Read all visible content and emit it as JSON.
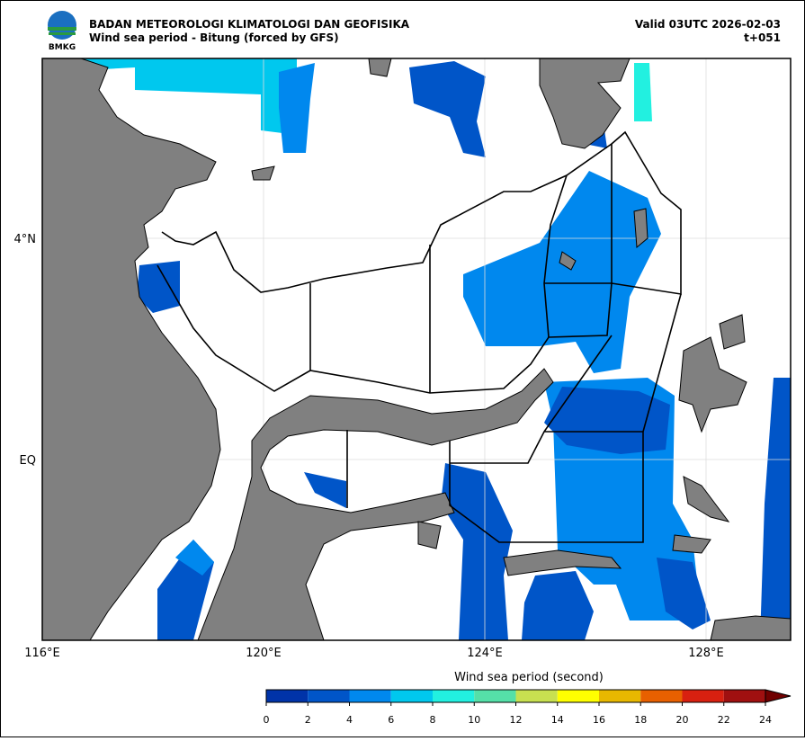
{
  "header": {
    "agency": "BADAN METEOROLOGI KLIMATOLOGI DAN GEOFISIKA",
    "subtitle": "Wind sea period - Bitung (forced by GFS)",
    "valid": "Valid 03UTC 2026-02-03",
    "lead": "t+051",
    "logo": "BMKG"
  },
  "map": {
    "x_labels": [
      "116°E",
      "120°E",
      "124°E",
      "128°E"
    ],
    "y_labels": [
      "4°N",
      "EQ"
    ]
  },
  "colorbar": {
    "label": "Wind sea period (second)",
    "ticks": [
      0,
      2,
      4,
      6,
      8,
      10,
      12,
      14,
      16,
      18,
      20,
      22,
      24
    ],
    "colors": [
      "#0033a8",
      "#0055c8",
      "#0088ee",
      "#00c8ee",
      "#22f0e0",
      "#55e0a8",
      "#c8e050",
      "#ffff00",
      "#e8b800",
      "#e86000",
      "#d82010",
      "#a01010"
    ],
    "extend_color": "#700000"
  }
}
